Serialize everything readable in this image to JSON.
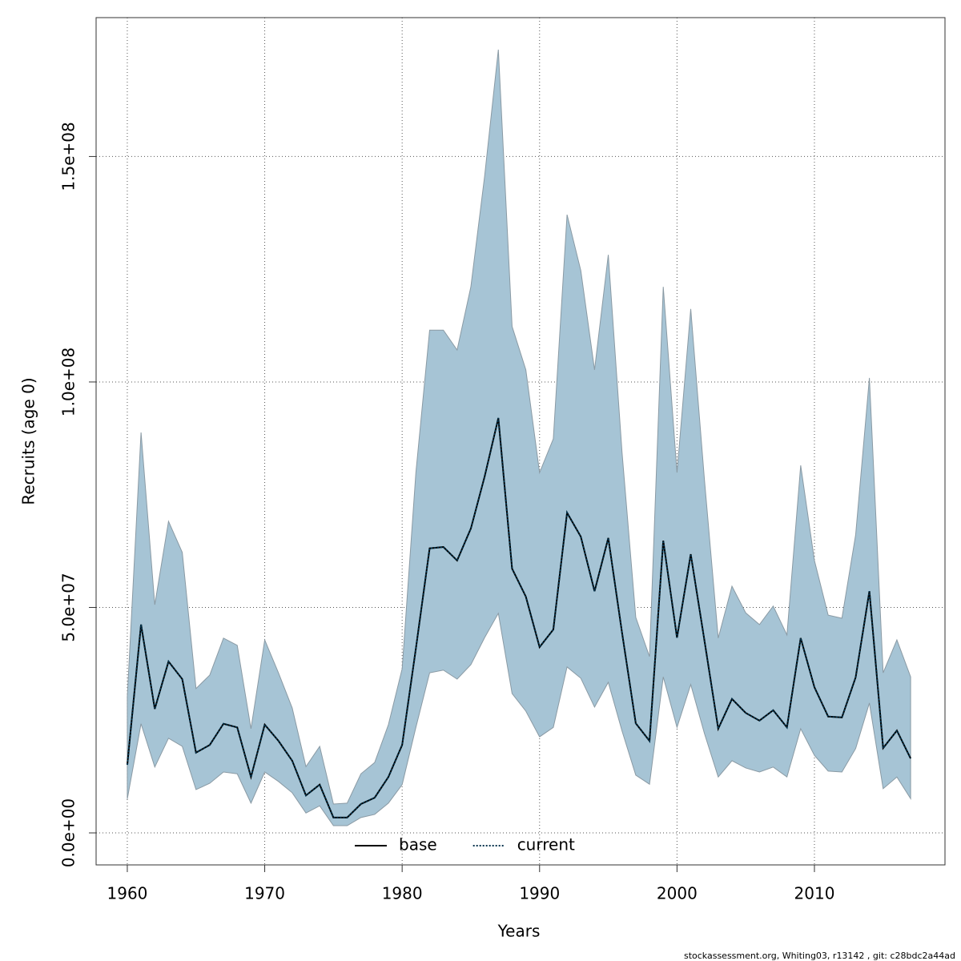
{
  "chart_data": {
    "type": "line",
    "xlabel": "Years",
    "ylabel": "Recruits (age 0)",
    "footnote": "stockassessment.org, Whiting03, r13142 , git: c28bdc2a44ad",
    "x": [
      1960,
      1961,
      1962,
      1963,
      1964,
      1965,
      1966,
      1967,
      1968,
      1969,
      1970,
      1971,
      1972,
      1973,
      1974,
      1975,
      1976,
      1977,
      1978,
      1979,
      1980,
      1981,
      1982,
      1983,
      1984,
      1985,
      1986,
      1987,
      1988,
      1989,
      1990,
      1991,
      1992,
      1993,
      1994,
      1995,
      1996,
      1997,
      1998,
      1999,
      2000,
      2001,
      2002,
      2003,
      2004,
      2005,
      2006,
      2007,
      2008,
      2009,
      2010,
      2011,
      2012,
      2013,
      2014,
      2015,
      2016,
      2017
    ],
    "series": [
      {
        "name": "base",
        "color": "#000000",
        "dash": "solid",
        "values": [
          15100000.0,
          46200000.0,
          27500000.0,
          38000000.0,
          34100000.0,
          17800000.0,
          19500000.0,
          24200000.0,
          23400000.0,
          12400000.0,
          24000000.0,
          20400000.0,
          16000000.0,
          8300000.0,
          10700000.0,
          3400000.0,
          3400000.0,
          6400000.0,
          7800000.0,
          12400000.0,
          19500000.0,
          40900000.0,
          63100000.0,
          63400000.0,
          60400000.0,
          67500000.0,
          79000000.0,
          92000000.0,
          58600000.0,
          52400000.0,
          41200000.0,
          45100000.0,
          71000000.0,
          65700000.0,
          53600000.0,
          65400000.0,
          44400000.0,
          24300000.0,
          20400000.0,
          64800000.0,
          43300000.0,
          61800000.0,
          42600000.0,
          23100000.0,
          29700000.0,
          26600000.0,
          24900000.0,
          27200000.0,
          23400000.0,
          43200000.0,
          32300000.0,
          25800000.0,
          25600000.0,
          34500000.0,
          53600000.0,
          18800000.0,
          22700000.0,
          16500000.0
        ]
      },
      {
        "name": "current",
        "color": "#00334d",
        "dash": "dotted",
        "values": [
          15100000.0,
          46200000.0,
          27500000.0,
          38000000.0,
          34100000.0,
          17800000.0,
          19500000.0,
          24200000.0,
          23400000.0,
          12400000.0,
          24000000.0,
          20400000.0,
          16000000.0,
          8300000.0,
          10700000.0,
          3400000.0,
          3400000.0,
          6400000.0,
          7800000.0,
          12400000.0,
          19500000.0,
          40900000.0,
          63100000.0,
          63400000.0,
          60400000.0,
          67500000.0,
          79000000.0,
          92000000.0,
          58600000.0,
          52400000.0,
          41200000.0,
          45100000.0,
          71000000.0,
          65700000.0,
          53600000.0,
          65400000.0,
          44400000.0,
          24300000.0,
          20400000.0,
          64800000.0,
          43300000.0,
          61800000.0,
          42600000.0,
          23100000.0,
          29700000.0,
          26600000.0,
          24900000.0,
          27200000.0,
          23400000.0,
          43200000.0,
          32300000.0,
          25800000.0,
          25600000.0,
          34500000.0,
          53600000.0,
          18800000.0,
          22700000.0,
          16500000.0
        ]
      }
    ],
    "band": {
      "color": "#a6c4d5",
      "edge": "#8a9aa4",
      "upper": [
        30200000.0,
        88800000.0,
        50600000.0,
        69100000.0,
        62200000.0,
        32000000.0,
        35000000.0,
        43200000.0,
        41600000.0,
        23100000.0,
        42800000.0,
        35500000.0,
        27700000.0,
        14700000.0,
        19200000.0,
        6400000.0,
        6600000.0,
        13100000.0,
        15600000.0,
        24000000.0,
        36400000.0,
        79900000.0,
        111500000.0,
        111500000.0,
        107100000.0,
        121100000.0,
        145600000.0,
        173700000.0,
        112300000.0,
        102700000.0,
        79900000.0,
        87400000.0,
        137100000.0,
        124700000.0,
        102700000.0,
        128200000.0,
        84400000.0,
        47800000.0,
        39100000.0,
        121100000.0,
        79900000.0,
        116200000.0,
        78200000.0,
        43200000.0,
        54700000.0,
        48800000.0,
        46200000.0,
        50300000.0,
        43900000.0,
        81500000.0,
        60400000.0,
        48300000.0,
        47600000.0,
        66100000.0,
        100900000.0,
        35500000.0,
        42800000.0,
        34600000.0
      ],
      "lower": [
        7500000.0,
        24200000.0,
        14600000.0,
        21000000.0,
        19200000.0,
        9600000.0,
        11000000.0,
        13500000.0,
        13100000.0,
        6600000.0,
        13500000.0,
        11400000.0,
        8900000.0,
        4400000.0,
        6000000.0,
        1600000.0,
        1600000.0,
        3400000.0,
        4100000.0,
        6600000.0,
        10700000.0,
        23400000.0,
        35500000.0,
        36100000.0,
        34100000.0,
        37300000.0,
        43300000.0,
        48700000.0,
        30900000.0,
        27000000.0,
        21300000.0,
        23400000.0,
        36800000.0,
        34300000.0,
        27900000.0,
        33400000.0,
        22600000.0,
        12800000.0,
        10800000.0,
        34600000.0,
        23400000.0,
        32900000.0,
        22000000.0,
        12400000.0,
        16000000.0,
        14400000.0,
        13500000.0,
        14600000.0,
        12400000.0,
        23100000.0,
        17200000.0,
        13700000.0,
        13500000.0,
        18700000.0,
        28800000.0,
        9800000.0,
        12400000.0,
        7600000.0
      ]
    },
    "xlim": [
      1957.73,
      2019.5
    ],
    "ylim": [
      -7100000.0,
      180800000.0
    ],
    "xticks": [
      1960,
      1970,
      1980,
      1990,
      2000,
      2010
    ],
    "yticks": [
      {
        "value": 0,
        "label": "0.0e+00"
      },
      {
        "value": 50000000,
        "label": "5.0e+07"
      },
      {
        "value": 100000000,
        "label": "1.0e+08"
      },
      {
        "value": 150000000,
        "label": "1.5e+08"
      }
    ],
    "grid": true,
    "legend": "bottom"
  }
}
